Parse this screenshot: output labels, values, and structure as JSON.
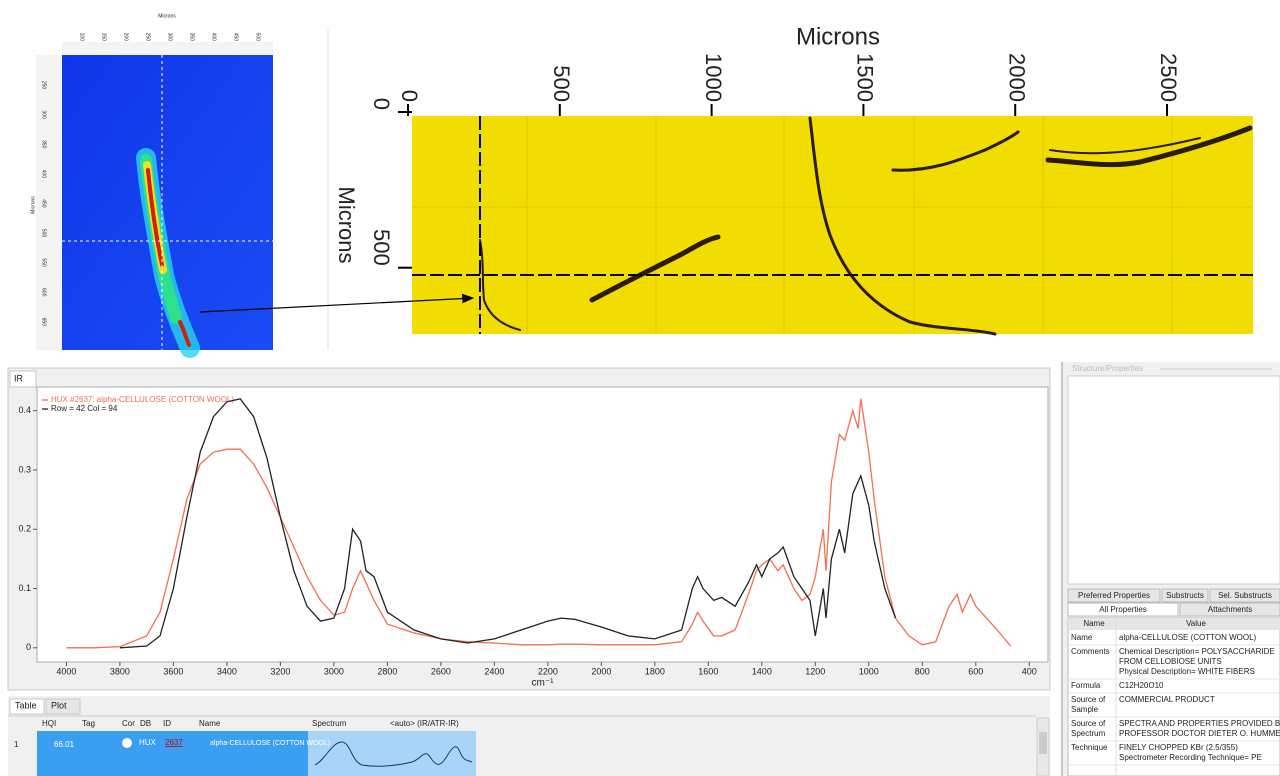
{
  "heatmap": {
    "x_label": "Microns",
    "y_label": "Microns",
    "xticks": [
      100,
      150,
      200,
      250,
      300,
      350,
      400,
      450,
      500
    ],
    "yticks": [
      250,
      300,
      350,
      400,
      450,
      500,
      550,
      600,
      650
    ]
  },
  "micrograph": {
    "x_label": "Microns",
    "y_label": "Microns",
    "xlim": [
      0,
      2770
    ],
    "ylim": [
      0,
      700
    ],
    "xticks": [
      0,
      500,
      1000,
      1500,
      2000,
      2500
    ],
    "yticks": [
      0,
      500
    ]
  },
  "chart_data": {
    "type": "line",
    "tab": "IR",
    "x_label": "cm⁻¹",
    "x": [
      4000,
      3900,
      3800,
      3700,
      3650,
      3600,
      3550,
      3500,
      3450,
      3400,
      3350,
      3300,
      3250,
      3200,
      3150,
      3100,
      3050,
      3000,
      2960,
      2930,
      2900,
      2880,
      2850,
      2800,
      2700,
      2600,
      2500,
      2400,
      2300,
      2200,
      2150,
      2100,
      2000,
      1900,
      1800,
      1700,
      1660,
      1640,
      1620,
      1580,
      1550,
      1500,
      1450,
      1420,
      1400,
      1370,
      1340,
      1320,
      1280,
      1250,
      1220,
      1200,
      1170,
      1160,
      1140,
      1110,
      1090,
      1060,
      1040,
      1030,
      1000,
      980,
      940,
      900,
      850,
      800,
      750,
      700,
      670,
      650,
      620,
      600,
      560,
      520,
      470
    ],
    "series": [
      {
        "name": "HUX #2637: alpha-CELLULOSE (COTTON WOOL)",
        "color": "#f07050",
        "values": [
          0.0,
          0.0,
          0.002,
          0.02,
          0.06,
          0.15,
          0.25,
          0.31,
          0.33,
          0.335,
          0.335,
          0.31,
          0.27,
          0.22,
          0.17,
          0.12,
          0.08,
          0.055,
          0.06,
          0.1,
          0.13,
          0.11,
          0.08,
          0.04,
          0.025,
          0.015,
          0.01,
          0.008,
          0.005,
          0.005,
          0.006,
          0.006,
          0.005,
          0.005,
          0.005,
          0.01,
          0.04,
          0.06,
          0.045,
          0.02,
          0.02,
          0.03,
          0.09,
          0.13,
          0.14,
          0.15,
          0.13,
          0.14,
          0.1,
          0.08,
          0.09,
          0.12,
          0.2,
          0.13,
          0.28,
          0.36,
          0.35,
          0.4,
          0.37,
          0.42,
          0.33,
          0.25,
          0.12,
          0.05,
          0.02,
          0.005,
          0.01,
          0.07,
          0.09,
          0.06,
          0.09,
          0.07,
          0.05,
          0.03,
          0.003
        ]
      },
      {
        "name": "Row = 42 Col = 94",
        "color": "#222222",
        "values": [
          null,
          null,
          0.0,
          0.003,
          0.02,
          0.1,
          0.22,
          0.33,
          0.39,
          0.415,
          0.42,
          0.39,
          0.32,
          0.22,
          0.13,
          0.07,
          0.045,
          0.05,
          0.1,
          0.2,
          0.18,
          0.13,
          0.12,
          0.06,
          0.03,
          0.015,
          0.008,
          0.015,
          0.03,
          0.045,
          0.05,
          0.048,
          0.035,
          0.02,
          0.015,
          0.03,
          0.1,
          0.12,
          0.1,
          0.08,
          0.085,
          0.07,
          0.11,
          0.14,
          0.12,
          0.15,
          0.16,
          0.17,
          0.12,
          0.1,
          0.08,
          0.02,
          0.1,
          0.05,
          0.15,
          0.2,
          0.16,
          0.26,
          0.28,
          0.29,
          0.24,
          0.18,
          0.1,
          0.05,
          null,
          null,
          null,
          null,
          null,
          null,
          null,
          null,
          null,
          null,
          null
        ]
      }
    ],
    "xlim": [
      4110,
      330
    ],
    "ylim": [
      -0.024,
      0.44
    ],
    "xticks": [
      4000,
      3800,
      3600,
      3400,
      3200,
      3000,
      2800,
      2600,
      2400,
      2200,
      2000,
      1800,
      1600,
      1400,
      1200,
      1000,
      800,
      600,
      400
    ],
    "yticks": [
      0,
      0.1,
      0.2,
      0.3,
      0.4
    ]
  },
  "results": {
    "tabs": [
      "Table",
      "Plot"
    ],
    "columns": [
      "HQI",
      "Tag",
      "Cor",
      "DB",
      "ID",
      "Name",
      "Spectrum",
      "<auto> (IR/ATR-IR)"
    ],
    "rows": [
      [
        "1",
        "66.01",
        "HUX",
        "2637",
        "alpha-CELLULOSE (COTTON WOOL)"
      ]
    ]
  },
  "properties": {
    "title": "Structure/Properties",
    "tabs": [
      "Preferred Properties",
      "Substructs",
      "Sel. Substructs",
      "All Properties",
      "Attachments"
    ],
    "columns": [
      "Name",
      "Value"
    ],
    "rows": [
      {
        "name": [
          "Name"
        ],
        "value": [
          "alpha-CELLULOSE (COTTON WOOL)"
        ]
      },
      {
        "name": [
          "Comments"
        ],
        "value": [
          "Chemical Description= POLYSACCHARIDE",
          "FROM CELLOBIOSE UNITS",
          "Physical Description= WHITE FIBERS"
        ]
      },
      {
        "name": [
          "Formula"
        ],
        "value": [
          "C12H20O10"
        ]
      },
      {
        "name": [
          "Source of",
          "Sample"
        ],
        "value": [
          "COMMERCIAL PRODUCT"
        ]
      },
      {
        "name": [
          "Source of",
          "Spectrum"
        ],
        "value": [
          "SPECTRA AND PROPERTIES PROVIDED BY",
          "PROFESSOR DOCTOR DIETER O. HUMMEL"
        ]
      },
      {
        "name": [
          "Technique"
        ],
        "value": [
          "FINELY CHOPPED KBr (2.5/355)",
          "Spectrometer Recording Technique= PE"
        ]
      }
    ]
  }
}
